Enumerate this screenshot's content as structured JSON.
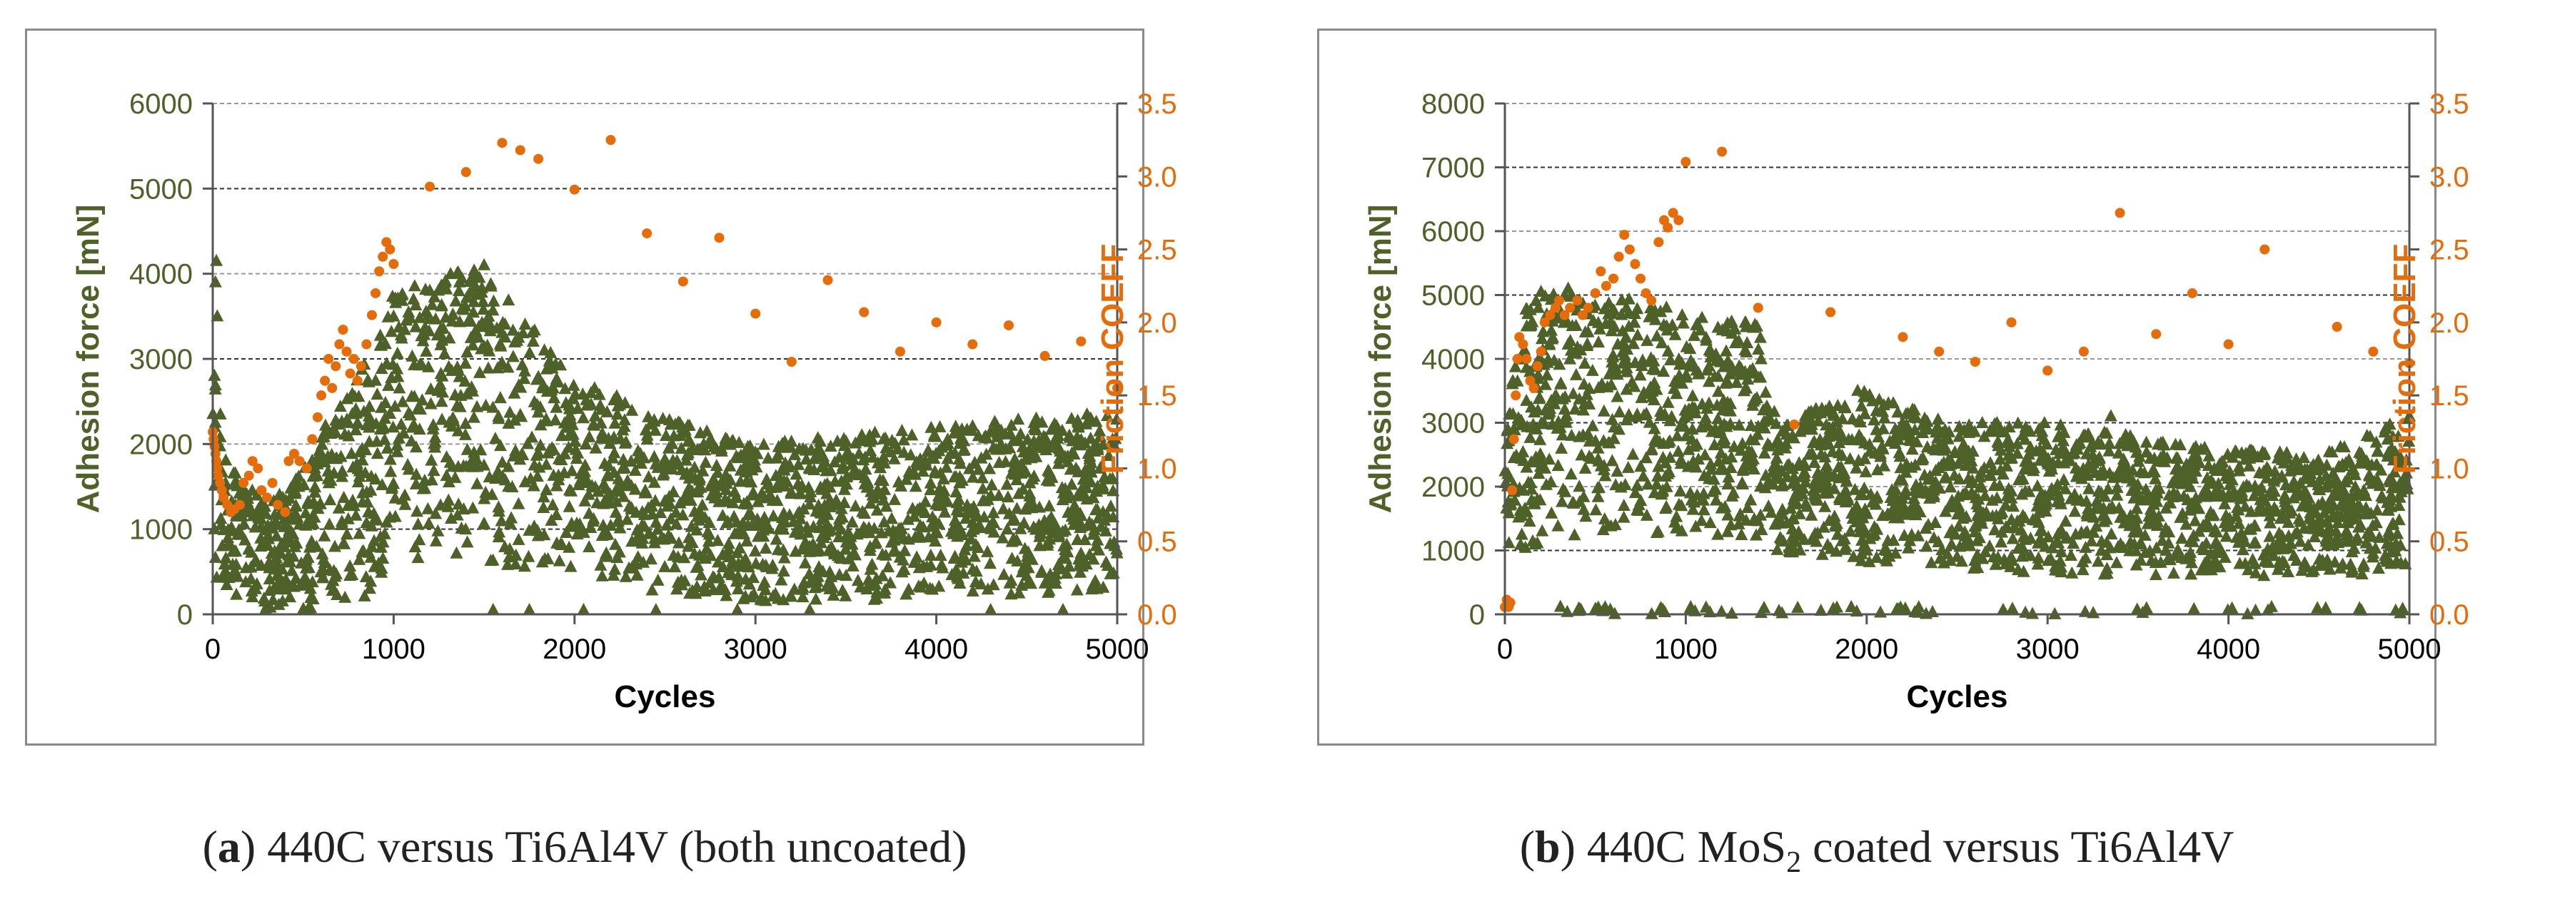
{
  "colors": {
    "adhesion": "#4e6128",
    "friction": "#e46c0a",
    "grid": "#555555",
    "axis": "#555555",
    "text": "#000000"
  },
  "captions": [
    {
      "label": "a",
      "text": "440C versus Ti6Al4V (both uncoated)"
    },
    {
      "label": "b",
      "text_before": "440C MoS",
      "subscript": "2",
      "text_after": " coated versus Ti6Al4V"
    }
  ],
  "chart_data": [
    {
      "type": "scatter",
      "panel": "a",
      "xlabel": "Cycles",
      "ylabel": "Adhesion force [mN]",
      "y2label": "Friction COEFF",
      "xlim": [
        0,
        5000
      ],
      "ylim": [
        0,
        6000
      ],
      "y2lim": [
        0,
        3.5
      ],
      "xticks": [
        "0",
        "1000",
        "2000",
        "3000",
        "4000",
        "5000"
      ],
      "yticks": [
        "0",
        "1000",
        "2000",
        "3000",
        "4000",
        "5000",
        "6000"
      ],
      "y2ticks": [
        "0.0",
        "0.5",
        "1.0",
        "1.5",
        "2.0",
        "2.5",
        "3.0",
        "3.5"
      ],
      "adhesion_envelope": [
        {
          "x": 0,
          "lo": 400,
          "hi": 4200
        },
        {
          "x": 50,
          "lo": 250,
          "hi": 2300
        },
        {
          "x": 150,
          "lo": 100,
          "hi": 1600
        },
        {
          "x": 300,
          "lo": 50,
          "hi": 1300
        },
        {
          "x": 500,
          "lo": 50,
          "hi": 1700
        },
        {
          "x": 700,
          "lo": 100,
          "hi": 2600
        },
        {
          "x": 900,
          "lo": 200,
          "hi": 3100
        },
        {
          "x": 1000,
          "lo": 600,
          "hi": 3800
        },
        {
          "x": 1300,
          "lo": 700,
          "hi": 4000
        },
        {
          "x": 1500,
          "lo": 600,
          "hi": 4100
        },
        {
          "x": 2000,
          "lo": 400,
          "hi": 2800
        },
        {
          "x": 2500,
          "lo": 250,
          "hi": 2300
        },
        {
          "x": 3000,
          "lo": 150,
          "hi": 2000
        },
        {
          "x": 3500,
          "lo": 150,
          "hi": 2100
        },
        {
          "x": 4000,
          "lo": 200,
          "hi": 2200
        },
        {
          "x": 4500,
          "lo": 200,
          "hi": 2300
        },
        {
          "x": 5000,
          "lo": 300,
          "hi": 2400
        }
      ],
      "adhesion_outliers": [
        {
          "x": 20,
          "y": 4150
        },
        {
          "x": 15,
          "y": 3900
        },
        {
          "x": 25,
          "y": 3500
        },
        {
          "x": 1200,
          "y": 3800
        },
        {
          "x": 1350,
          "y": 4000
        },
        {
          "x": 1500,
          "y": 4100
        },
        {
          "x": 1550,
          "y": 50
        },
        {
          "x": 1750,
          "y": 50
        },
        {
          "x": 2050,
          "y": 50
        },
        {
          "x": 2450,
          "y": 50
        },
        {
          "x": 2900,
          "y": 50
        },
        {
          "x": 3300,
          "y": 50
        },
        {
          "x": 4300,
          "y": 50
        },
        {
          "x": 4700,
          "y": 50
        }
      ],
      "friction_points": [
        {
          "x": 0,
          "y": 1.25
        },
        {
          "x": 5,
          "y": 1.2
        },
        {
          "x": 10,
          "y": 1.15
        },
        {
          "x": 15,
          "y": 1.1
        },
        {
          "x": 20,
          "y": 1.05
        },
        {
          "x": 25,
          "y": 1.0
        },
        {
          "x": 30,
          "y": 0.95
        },
        {
          "x": 40,
          "y": 0.9
        },
        {
          "x": 50,
          "y": 0.85
        },
        {
          "x": 60,
          "y": 0.8
        },
        {
          "x": 80,
          "y": 0.75
        },
        {
          "x": 100,
          "y": 0.7
        },
        {
          "x": 120,
          "y": 0.72
        },
        {
          "x": 150,
          "y": 0.75
        },
        {
          "x": 170,
          "y": 0.9
        },
        {
          "x": 200,
          "y": 0.95
        },
        {
          "x": 220,
          "y": 1.05
        },
        {
          "x": 250,
          "y": 1.0
        },
        {
          "x": 270,
          "y": 0.85
        },
        {
          "x": 300,
          "y": 0.8
        },
        {
          "x": 330,
          "y": 0.9
        },
        {
          "x": 360,
          "y": 0.75
        },
        {
          "x": 400,
          "y": 0.7
        },
        {
          "x": 420,
          "y": 1.05
        },
        {
          "x": 450,
          "y": 1.1
        },
        {
          "x": 480,
          "y": 1.05
        },
        {
          "x": 520,
          "y": 1.0
        },
        {
          "x": 550,
          "y": 1.2
        },
        {
          "x": 580,
          "y": 1.35
        },
        {
          "x": 600,
          "y": 1.5
        },
        {
          "x": 620,
          "y": 1.6
        },
        {
          "x": 640,
          "y": 1.75
        },
        {
          "x": 660,
          "y": 1.55
        },
        {
          "x": 680,
          "y": 1.7
        },
        {
          "x": 700,
          "y": 1.85
        },
        {
          "x": 720,
          "y": 1.95
        },
        {
          "x": 740,
          "y": 1.8
        },
        {
          "x": 760,
          "y": 1.65
        },
        {
          "x": 780,
          "y": 1.75
        },
        {
          "x": 800,
          "y": 1.6
        },
        {
          "x": 820,
          "y": 1.7
        },
        {
          "x": 850,
          "y": 1.85
        },
        {
          "x": 880,
          "y": 2.05
        },
        {
          "x": 900,
          "y": 2.2
        },
        {
          "x": 920,
          "y": 2.35
        },
        {
          "x": 940,
          "y": 2.45
        },
        {
          "x": 960,
          "y": 2.55
        },
        {
          "x": 980,
          "y": 2.5
        },
        {
          "x": 1000,
          "y": 2.4
        },
        {
          "x": 1200,
          "y": 2.93
        },
        {
          "x": 1400,
          "y": 3.03
        },
        {
          "x": 1600,
          "y": 3.23
        },
        {
          "x": 1700,
          "y": 3.18
        },
        {
          "x": 1800,
          "y": 3.12
        },
        {
          "x": 2000,
          "y": 2.91
        },
        {
          "x": 2200,
          "y": 3.25
        },
        {
          "x": 2400,
          "y": 2.61
        },
        {
          "x": 2600,
          "y": 2.28
        },
        {
          "x": 2800,
          "y": 2.58
        },
        {
          "x": 3000,
          "y": 2.06
        },
        {
          "x": 3200,
          "y": 1.73
        },
        {
          "x": 3400,
          "y": 2.29
        },
        {
          "x": 3600,
          "y": 2.07
        },
        {
          "x": 3800,
          "y": 1.8
        },
        {
          "x": 4000,
          "y": 2.0
        },
        {
          "x": 4200,
          "y": 1.85
        },
        {
          "x": 4400,
          "y": 1.98
        },
        {
          "x": 4600,
          "y": 1.77
        },
        {
          "x": 4800,
          "y": 1.87
        },
        {
          "x": 5000,
          "y": 1.55
        }
      ]
    },
    {
      "type": "scatter",
      "panel": "b",
      "xlabel": "Cycles",
      "ylabel": "Adhesion force [mN]",
      "y2label": "Friction COEFF",
      "xlim": [
        0,
        5000
      ],
      "ylim": [
        0,
        8000
      ],
      "y2lim": [
        0,
        3.5
      ],
      "xticks": [
        "0",
        "1000",
        "2000",
        "3000",
        "4000",
        "5000"
      ],
      "yticks": [
        "0",
        "1000",
        "2000",
        "3000",
        "4000",
        "5000",
        "6000",
        "7000",
        "8000"
      ],
      "y2ticks": [
        "0.0",
        "0.5",
        "1.0",
        "1.5",
        "2.0",
        "2.5",
        "3.0",
        "3.5"
      ],
      "adhesion_envelope": [
        {
          "x": 0,
          "lo": 800,
          "hi": 3000
        },
        {
          "x": 100,
          "lo": 1000,
          "hi": 4800
        },
        {
          "x": 300,
          "lo": 1200,
          "hi": 5100
        },
        {
          "x": 600,
          "lo": 1300,
          "hi": 5000
        },
        {
          "x": 900,
          "lo": 1200,
          "hi": 4800
        },
        {
          "x": 1200,
          "lo": 1200,
          "hi": 4600
        },
        {
          "x": 1400,
          "lo": 1200,
          "hi": 4600
        },
        {
          "x": 1500,
          "lo": 900,
          "hi": 3000
        },
        {
          "x": 2000,
          "lo": 800,
          "hi": 3500
        },
        {
          "x": 2500,
          "lo": 700,
          "hi": 3000
        },
        {
          "x": 3000,
          "lo": 600,
          "hi": 3000
        },
        {
          "x": 3500,
          "lo": 600,
          "hi": 2800
        },
        {
          "x": 4000,
          "lo": 600,
          "hi": 2600
        },
        {
          "x": 4500,
          "lo": 600,
          "hi": 2500
        },
        {
          "x": 5000,
          "lo": 600,
          "hi": 3100
        }
      ],
      "adhesion_outliers": [
        {
          "x": 200,
          "y": 5050
        },
        {
          "x": 350,
          "y": 5100
        },
        {
          "x": 1950,
          "y": 3500
        },
        {
          "x": 3350,
          "y": 3100
        },
        {
          "x": 5000,
          "y": 3100
        }
      ],
      "adhesion_zero_band": [
        300,
        5000
      ],
      "friction_points": [
        {
          "x": 0,
          "y": 0.05
        },
        {
          "x": 10,
          "y": 0.1
        },
        {
          "x": 20,
          "y": 0.05
        },
        {
          "x": 30,
          "y": 0.08
        },
        {
          "x": 40,
          "y": 0.85
        },
        {
          "x": 50,
          "y": 1.2
        },
        {
          "x": 60,
          "y": 1.5
        },
        {
          "x": 70,
          "y": 1.75
        },
        {
          "x": 80,
          "y": 1.9
        },
        {
          "x": 100,
          "y": 1.85
        },
        {
          "x": 120,
          "y": 1.75
        },
        {
          "x": 140,
          "y": 1.6
        },
        {
          "x": 160,
          "y": 1.55
        },
        {
          "x": 180,
          "y": 1.7
        },
        {
          "x": 200,
          "y": 1.8
        },
        {
          "x": 220,
          "y": 2.0
        },
        {
          "x": 250,
          "y": 2.05
        },
        {
          "x": 280,
          "y": 2.1
        },
        {
          "x": 300,
          "y": 2.15
        },
        {
          "x": 330,
          "y": 2.05
        },
        {
          "x": 360,
          "y": 2.1
        },
        {
          "x": 400,
          "y": 2.15
        },
        {
          "x": 430,
          "y": 2.05
        },
        {
          "x": 460,
          "y": 2.1
        },
        {
          "x": 500,
          "y": 2.2
        },
        {
          "x": 530,
          "y": 2.35
        },
        {
          "x": 560,
          "y": 2.25
        },
        {
          "x": 600,
          "y": 2.3
        },
        {
          "x": 630,
          "y": 2.45
        },
        {
          "x": 660,
          "y": 2.6
        },
        {
          "x": 690,
          "y": 2.5
        },
        {
          "x": 720,
          "y": 2.4
        },
        {
          "x": 750,
          "y": 2.3
        },
        {
          "x": 780,
          "y": 2.2
        },
        {
          "x": 810,
          "y": 2.15
        },
        {
          "x": 850,
          "y": 2.55
        },
        {
          "x": 880,
          "y": 2.7
        },
        {
          "x": 900,
          "y": 2.65
        },
        {
          "x": 930,
          "y": 2.75
        },
        {
          "x": 960,
          "y": 2.7
        },
        {
          "x": 1000,
          "y": 3.1
        },
        {
          "x": 1200,
          "y": 3.17
        },
        {
          "x": 1400,
          "y": 2.1
        },
        {
          "x": 1600,
          "y": 1.3
        },
        {
          "x": 1800,
          "y": 2.07
        },
        {
          "x": 2200,
          "y": 1.9
        },
        {
          "x": 2400,
          "y": 1.8
        },
        {
          "x": 2600,
          "y": 1.73
        },
        {
          "x": 2800,
          "y": 2.0
        },
        {
          "x": 3000,
          "y": 1.67
        },
        {
          "x": 3200,
          "y": 1.8
        },
        {
          "x": 3400,
          "y": 2.75
        },
        {
          "x": 3600,
          "y": 1.92
        },
        {
          "x": 3800,
          "y": 2.2
        },
        {
          "x": 4000,
          "y": 1.85
        },
        {
          "x": 4200,
          "y": 2.5
        },
        {
          "x": 4600,
          "y": 1.97
        },
        {
          "x": 4800,
          "y": 1.8
        },
        {
          "x": 5000,
          "y": 1.72
        }
      ]
    }
  ]
}
